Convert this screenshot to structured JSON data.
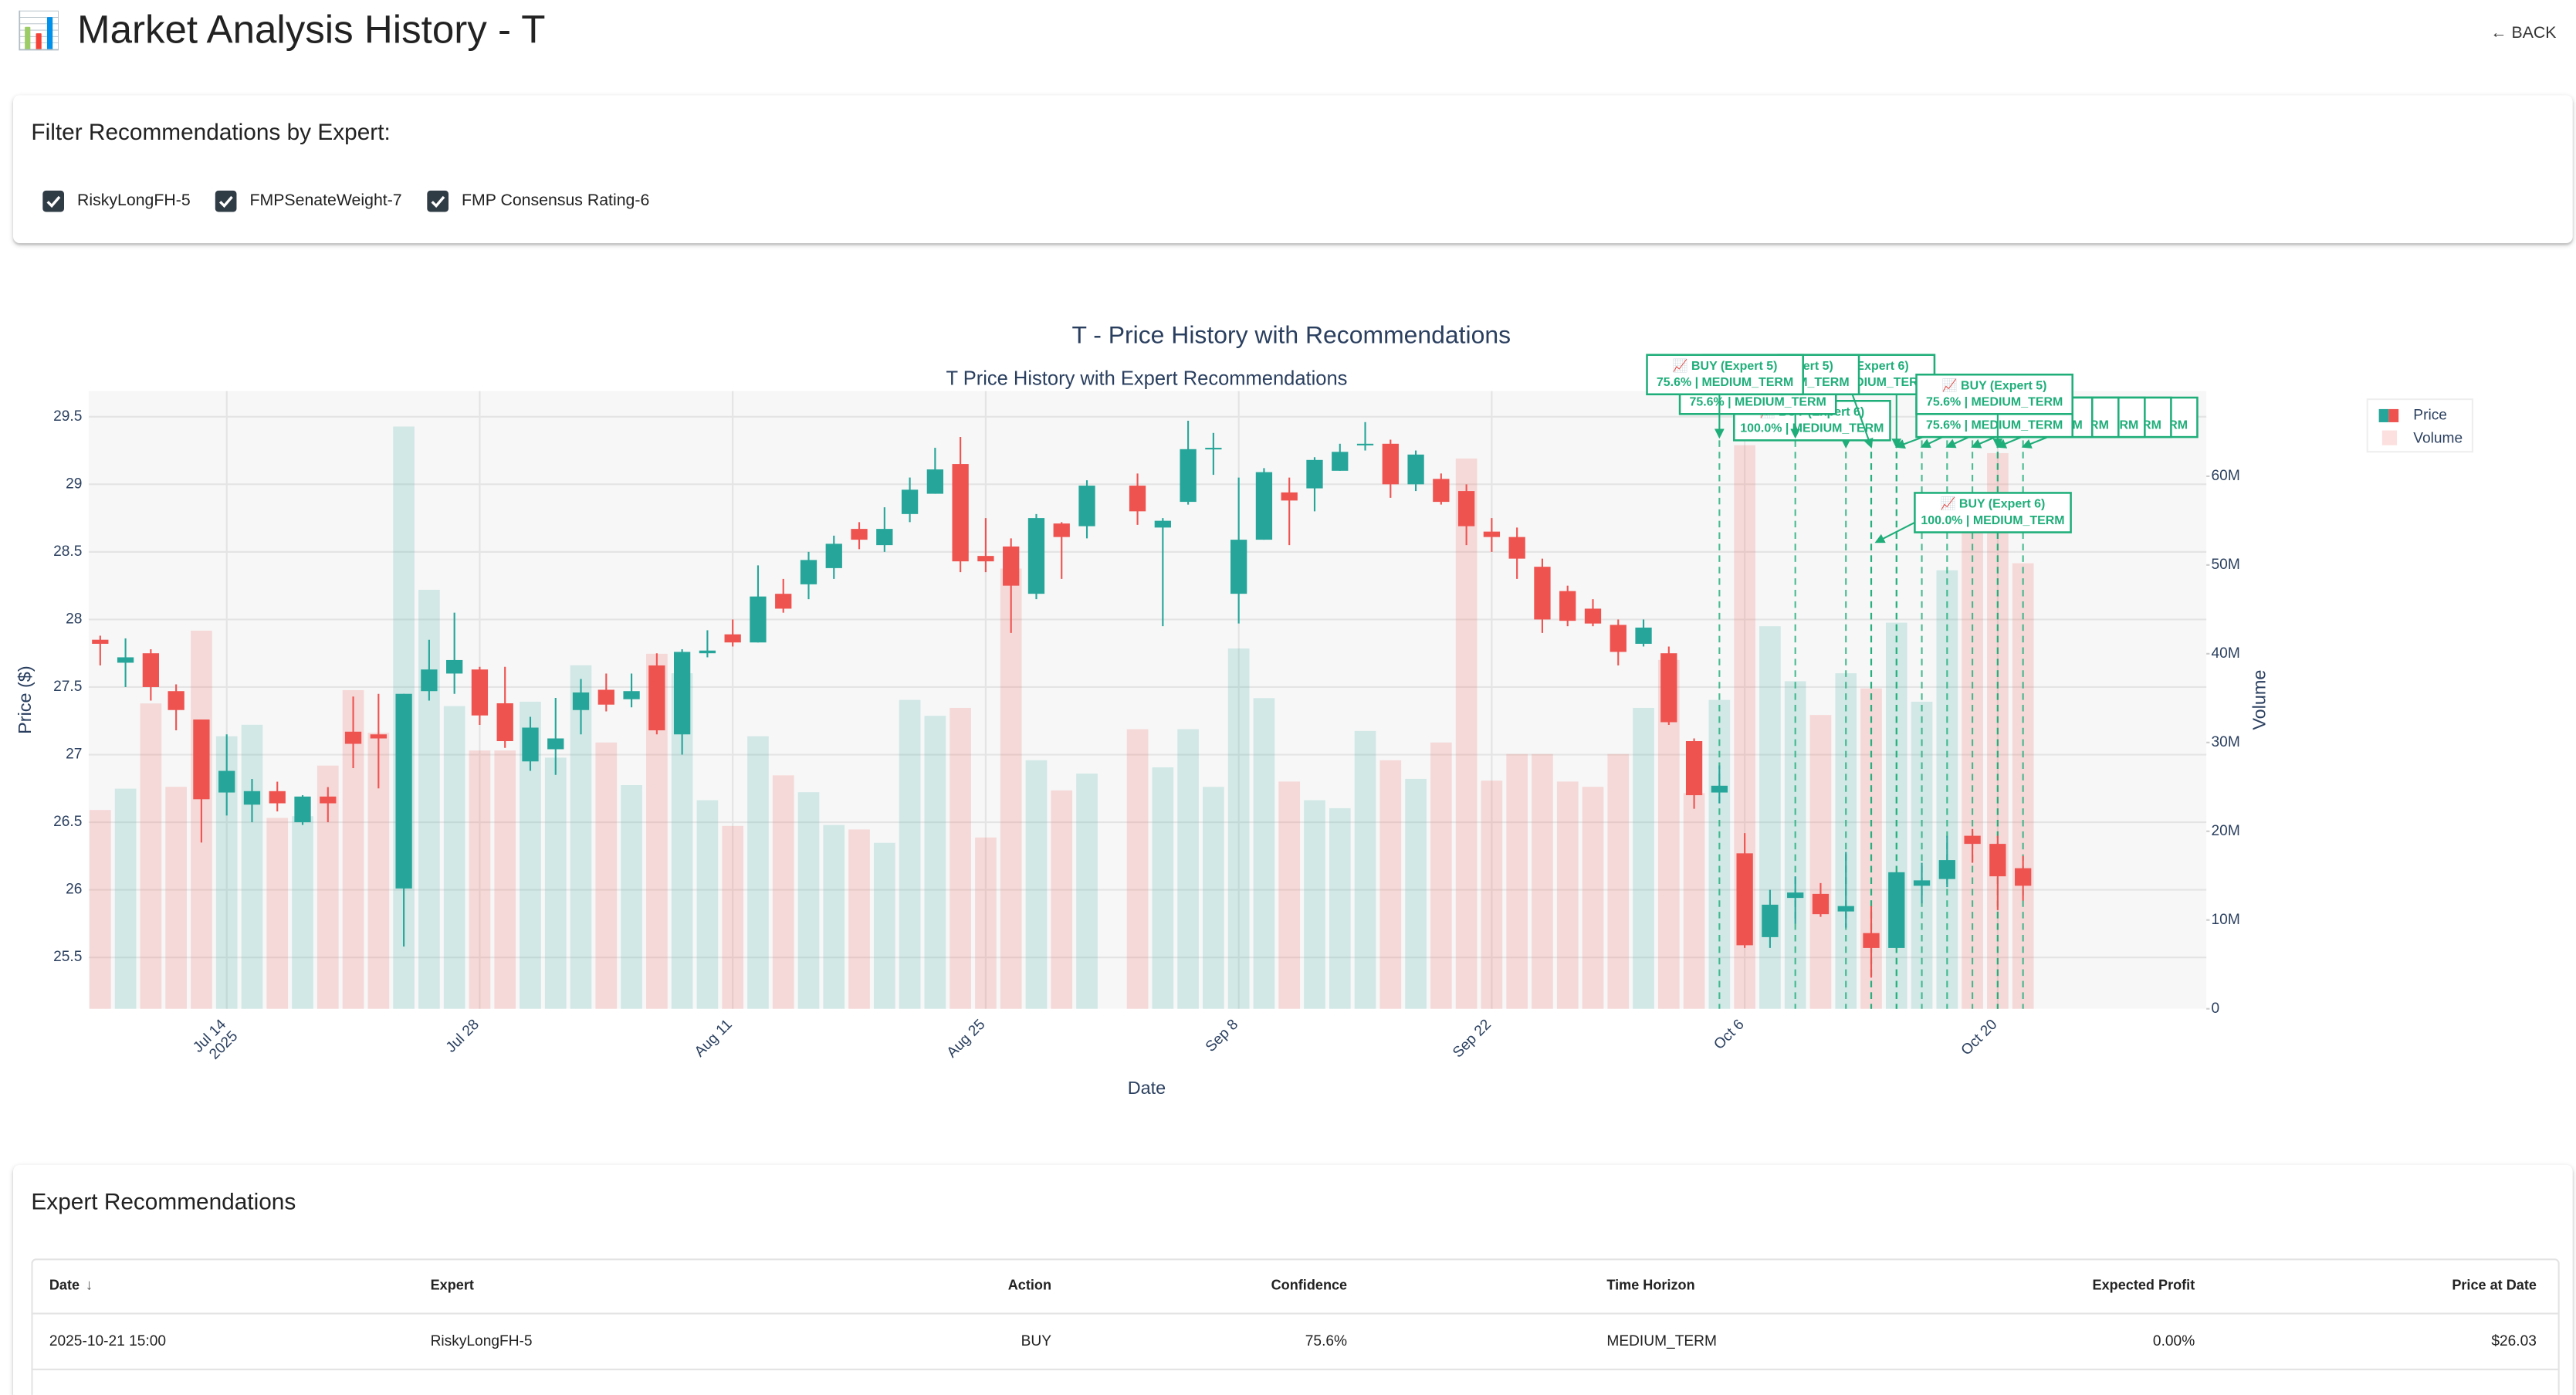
{
  "header": {
    "icon": "📊",
    "title": "Market Analysis History - T",
    "back": "← BACK"
  },
  "filter": {
    "title": "Filter Recommendations by Expert:",
    "experts": [
      "RiskyLongFH-5",
      "FMPSenateWeight-7",
      "FMP Consensus Rating-6"
    ],
    "checked": [
      true,
      true,
      true
    ]
  },
  "chart_data": {
    "type": "candlestick",
    "title": "T - Price History with Recommendations",
    "subtitle": "T Price History with Expert Recommendations",
    "x_label": "Date",
    "y_label": "Price ($)",
    "y2_label": "Volume",
    "x": [
      "2025-07-07",
      "2025-07-08",
      "2025-07-09",
      "2025-07-10",
      "2025-07-11",
      "2025-07-14",
      "2025-07-15",
      "2025-07-16",
      "2025-07-17",
      "2025-07-18",
      "2025-07-21",
      "2025-07-22",
      "2025-07-23",
      "2025-07-24",
      "2025-07-25",
      "2025-07-28",
      "2025-07-29",
      "2025-07-30",
      "2025-07-31",
      "2025-08-01",
      "2025-08-04",
      "2025-08-05",
      "2025-08-06",
      "2025-08-07",
      "2025-08-08",
      "2025-08-11",
      "2025-08-12",
      "2025-08-13",
      "2025-08-14",
      "2025-08-15",
      "2025-08-18",
      "2025-08-19",
      "2025-08-20",
      "2025-08-21",
      "2025-08-22",
      "2025-08-25",
      "2025-08-26",
      "2025-08-27",
      "2025-08-28",
      "2025-08-29",
      "2025-09-01",
      "2025-09-02",
      "2025-09-03",
      "2025-09-04",
      "2025-09-05",
      "2025-09-08",
      "2025-09-09",
      "2025-09-10",
      "2025-09-11",
      "2025-09-12",
      "2025-09-15",
      "2025-09-16",
      "2025-09-17",
      "2025-09-18",
      "2025-09-19",
      "2025-09-22",
      "2025-09-23",
      "2025-09-24",
      "2025-09-25",
      "2025-09-26",
      "2025-09-29",
      "2025-09-30",
      "2025-10-01",
      "2025-10-02",
      "2025-10-03",
      "2025-10-06",
      "2025-10-07",
      "2025-10-08",
      "2025-10-09",
      "2025-10-10",
      "2025-10-13",
      "2025-10-14",
      "2025-10-15",
      "2025-10-16",
      "2025-10-17",
      "2025-10-20",
      "2025-10-21"
    ],
    "series": [
      {
        "name": "Price",
        "increasing_color": "#26a69a",
        "decreasing_color": "#ef5350",
        "open": [
          27.85,
          27.68,
          27.75,
          27.47,
          27.26,
          26.72,
          26.63,
          26.73,
          26.5,
          26.69,
          27.17,
          27.15,
          26.01,
          27.47,
          27.6,
          27.63,
          27.38,
          26.95,
          27.04,
          27.33,
          27.48,
          27.41,
          27.66,
          27.15,
          27.75,
          27.89,
          27.83,
          28.19,
          28.26,
          28.38,
          28.67,
          28.55,
          28.78,
          28.93,
          29.15,
          28.47,
          28.54,
          28.19,
          28.71,
          28.69,
          null,
          28.99,
          28.68,
          28.87,
          29.26,
          28.19,
          28.59,
          28.94,
          28.97,
          29.1,
          29.29,
          29.3,
          29.0,
          29.04,
          28.95,
          28.65,
          28.61,
          28.39,
          28.21,
          28.08,
          27.96,
          27.82,
          27.75,
          27.1,
          26.72,
          26.27,
          25.65,
          25.94,
          25.97,
          25.84,
          25.68,
          25.57,
          26.03,
          26.08,
          26.4,
          26.34,
          26.16
        ],
        "high": [
          27.88,
          27.86,
          27.78,
          27.52,
          27.26,
          27.15,
          26.82,
          26.8,
          26.7,
          26.76,
          27.43,
          27.45,
          27.45,
          27.85,
          28.05,
          27.65,
          27.65,
          27.28,
          27.42,
          27.56,
          27.6,
          27.6,
          27.75,
          27.78,
          27.92,
          28.0,
          28.4,
          28.3,
          28.5,
          28.62,
          28.72,
          28.83,
          29.05,
          29.27,
          29.35,
          28.75,
          28.6,
          28.78,
          28.72,
          29.03,
          null,
          29.08,
          28.75,
          29.47,
          29.38,
          29.05,
          29.12,
          29.05,
          29.2,
          29.3,
          29.46,
          29.33,
          29.25,
          29.08,
          29.0,
          28.75,
          28.68,
          28.45,
          28.25,
          28.15,
          28.0,
          28.0,
          27.8,
          27.12,
          26.92,
          26.42,
          26.0,
          26.1,
          26.05,
          26.28,
          25.88,
          26.13,
          26.2,
          26.4,
          26.45,
          26.4,
          26.25
        ],
        "low": [
          27.66,
          27.5,
          27.4,
          27.18,
          26.35,
          26.55,
          26.5,
          26.58,
          26.48,
          26.5,
          26.9,
          26.75,
          25.58,
          27.4,
          27.45,
          27.22,
          27.05,
          26.88,
          26.85,
          27.15,
          27.32,
          27.35,
          27.15,
          27.0,
          27.72,
          27.8,
          27.83,
          28.05,
          28.15,
          28.3,
          28.52,
          28.5,
          28.72,
          28.93,
          28.35,
          28.35,
          27.9,
          28.15,
          28.3,
          28.6,
          null,
          28.7,
          27.95,
          28.85,
          29.07,
          27.97,
          28.59,
          28.55,
          28.8,
          29.1,
          29.25,
          28.9,
          28.95,
          28.85,
          28.55,
          28.5,
          28.3,
          27.9,
          27.95,
          27.95,
          27.66,
          27.8,
          27.22,
          26.6,
          26.64,
          25.57,
          25.57,
          25.75,
          25.8,
          25.72,
          25.35,
          25.57,
          25.9,
          26.02,
          26.2,
          25.85,
          25.92
        ],
        "close": [
          27.82,
          27.72,
          27.5,
          27.33,
          26.67,
          26.88,
          26.73,
          26.64,
          26.69,
          26.64,
          27.08,
          27.12,
          27.45,
          27.63,
          27.7,
          27.29,
          27.1,
          27.2,
          27.12,
          27.46,
          27.37,
          27.47,
          27.18,
          27.76,
          27.77,
          27.83,
          28.17,
          28.08,
          28.44,
          28.56,
          28.59,
          28.67,
          28.96,
          29.11,
          28.43,
          28.43,
          28.25,
          28.75,
          28.61,
          28.99,
          null,
          28.8,
          28.73,
          29.26,
          29.27,
          28.59,
          29.09,
          28.88,
          29.18,
          29.24,
          29.3,
          29.0,
          29.22,
          28.87,
          28.69,
          28.61,
          28.45,
          28.0,
          27.99,
          27.97,
          27.76,
          27.94,
          27.24,
          26.7,
          26.77,
          25.59,
          25.89,
          25.98,
          25.82,
          25.88,
          25.57,
          26.13,
          26.07,
          26.22,
          26.34,
          26.1,
          26.03
        ]
      },
      {
        "name": "Volume",
        "axis": "y2",
        "increasing_color": "rgba(38,166,154,0.18)",
        "decreasing_color": "rgba(239,83,80,0.18)",
        "values": [
          22400000,
          24800000,
          34400000,
          25000000,
          42600000,
          30700000,
          32000000,
          21500000,
          21700000,
          27400000,
          35900000,
          31100000,
          65600000,
          47200000,
          34100000,
          29100000,
          29100000,
          34600000,
          28300000,
          38700000,
          30000000,
          25200000,
          40000000,
          37800000,
          23500000,
          20600000,
          30700000,
          26300000,
          24400000,
          20700000,
          20200000,
          18700000,
          34800000,
          33000000,
          33900000,
          19300000,
          49600000,
          28000000,
          24600000,
          26500000,
          null,
          31500000,
          27200000,
          31500000,
          25000000,
          40600000,
          35000000,
          25600000,
          23500000,
          22600000,
          31300000,
          28000000,
          25900000,
          30000000,
          62000000,
          25700000,
          28700000,
          28700000,
          25600000,
          25000000,
          28700000,
          33900000,
          39300000,
          24300000,
          34800000,
          63500000,
          43100000,
          36900000,
          33100000,
          37800000,
          36100000,
          43500000,
          34600000,
          49400000,
          56300000,
          62600000,
          50200000
        ]
      }
    ],
    "ylim": [
      25.12,
      29.69
    ],
    "yticks": [
      25.5,
      26,
      26.5,
      27,
      27.5,
      28,
      28.5,
      29,
      29.5
    ],
    "y2lim": [
      0,
      69600000
    ],
    "y2ticks": [
      0,
      {
        "value": 10000000,
        "label": "10M"
      },
      {
        "value": 20000000,
        "label": "20M"
      },
      {
        "value": 30000000,
        "label": "30M"
      },
      {
        "value": 40000000,
        "label": "40M"
      },
      {
        "value": 50000000,
        "label": "50M"
      },
      {
        "value": 60000000,
        "label": "60M"
      }
    ],
    "xticks": [
      {
        "value": "2025-07-14",
        "label": [
          "Jul 14",
          "2025"
        ]
      },
      {
        "value": "2025-07-28",
        "label": "Jul 28"
      },
      {
        "value": "2025-08-11",
        "label": "Aug 11"
      },
      {
        "value": "2025-08-25",
        "label": "Aug 25"
      },
      {
        "value": "2025-09-08",
        "label": "Sep 8"
      },
      {
        "value": "2025-09-22",
        "label": "Sep 22"
      },
      {
        "value": "2025-10-06",
        "label": "Oct 6"
      },
      {
        "value": "2025-10-20",
        "label": "Oct 20"
      }
    ],
    "grid": true,
    "legend": "top-right",
    "annotation_color": "#1fae7a",
    "annotations": [
      {
        "x": "2025-10-10",
        "text": [
          "📈 BUY (Expert 6)",
          "100.0% | MEDIUM_TERM"
        ]
      },
      {
        "x": "2025-10-08",
        "text": [
          "📈 BUY (Expert 5)",
          "75.6% | MEDIUM_TERM"
        ]
      },
      {
        "x": "2025-10-14",
        "text": [
          "📈 BUY (Expert 6)",
          "100.0% | MEDIUM_TERM"
        ]
      },
      {
        "x": "2025-10-13",
        "text": [
          "📈 BUY (Expert 5)",
          "75.6% | MEDIUM_TERM"
        ]
      },
      {
        "x": "2025-10-03",
        "text": [
          "📈 BUY (Expert 5)",
          "75.6% | MEDIUM_TERM"
        ]
      },
      {
        "x": "2025-10-21",
        "text": [
          "📈 BUY (Expert 5)",
          "75.6% | MEDIUM_TERM"
        ]
      },
      {
        "x": "2025-10-20",
        "text": [
          "📈 BUY (Expert 5)",
          "75.6% | MEDIUM_TERM"
        ]
      },
      {
        "x": "2025-10-17",
        "text": [
          "📈 BUY (Expert 6)",
          "100.0% | MEDIUM_TERM"
        ]
      },
      {
        "x": "2025-10-16",
        "text": [
          "📈 BUY (Expert 5)",
          "75.6% | MEDIUM_TERM"
        ]
      },
      {
        "x": "2025-10-15",
        "text": [
          "📈 BUY (Expert 5)",
          "75.6% | MEDIUM_TERM"
        ]
      },
      {
        "x": "2025-10-14",
        "text": [
          "📈 BUY (Expert 5)",
          "75.6% | MEDIUM_TERM"
        ]
      },
      {
        "x": "2025-10-20",
        "text": [
          "📈 BUY (Expert 5)",
          "75.6% | MEDIUM_TERM"
        ]
      },
      {
        "x": "2025-10-13",
        "text": [
          "📈 BUY (Expert 6)",
          "100.0% | MEDIUM_TERM"
        ]
      }
    ]
  },
  "recommendations": {
    "title": "Expert Recommendations",
    "columns": [
      "Date",
      "Expert",
      "Action",
      "Confidence",
      "Time Horizon",
      "Expected Profit",
      "Price at Date"
    ],
    "rows": [
      [
        "2025-10-21 15:00",
        "RiskyLongFH-5",
        "BUY",
        "75.6%",
        "MEDIUM_TERM",
        "0.00%",
        "$26.03"
      ]
    ]
  }
}
